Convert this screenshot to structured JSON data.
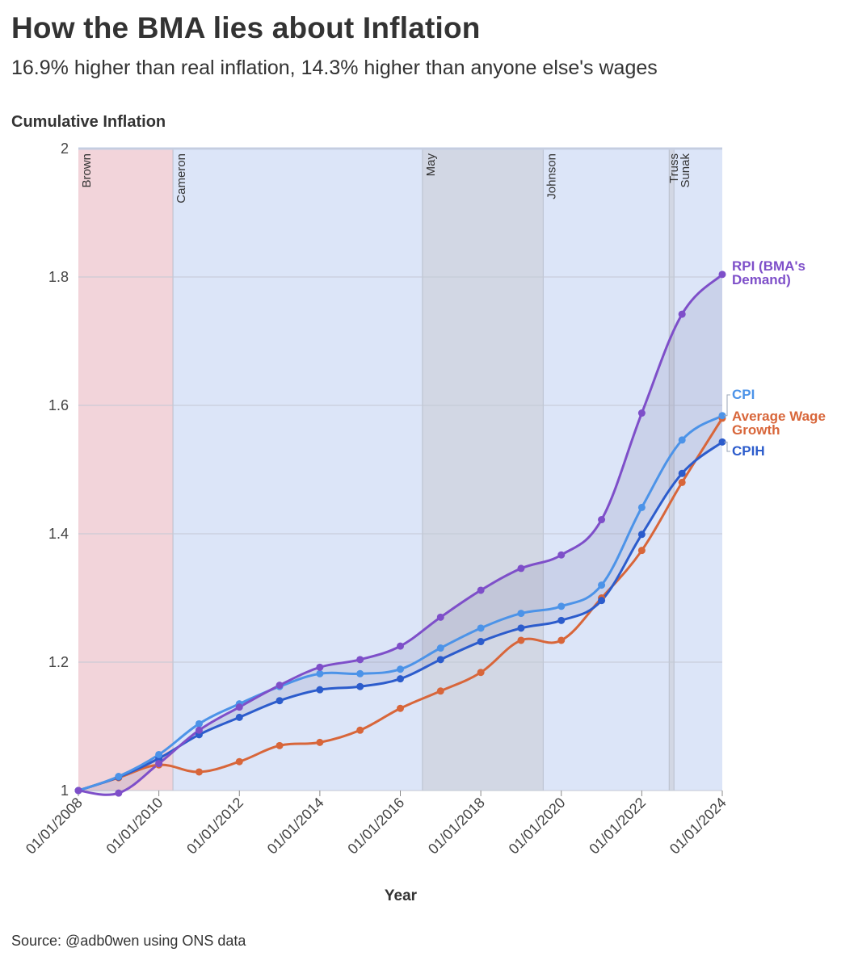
{
  "header": {
    "title": "How the BMA lies about Inflation",
    "subtitle": "16.9% higher than real inflation, 14.3% higher than anyone else's wages"
  },
  "footer": {
    "source": "Source: @adb0wen using ONS data"
  },
  "chart_data": {
    "type": "line",
    "ylabel": "Cumulative Inflation",
    "xlabel": "Year",
    "ylim": [
      1,
      2
    ],
    "yticks": [
      1,
      1.2,
      1.4,
      1.6,
      1.8,
      2
    ],
    "ytick_labels": [
      "1",
      "1.2",
      "1.4",
      "1.6",
      "1.8",
      "2"
    ],
    "xlim": [
      2008,
      2024
    ],
    "xticks": [
      2008,
      2010,
      2012,
      2014,
      2016,
      2018,
      2020,
      2022,
      2024
    ],
    "xtick_labels": [
      "01/01/2008",
      "01/01/2010",
      "01/01/2012",
      "01/01/2014",
      "01/01/2016",
      "01/01/2018",
      "01/01/2020",
      "01/01/2022",
      "01/01/2024"
    ],
    "x": [
      2008,
      2009,
      2010,
      2011,
      2012,
      2013,
      2014,
      2015,
      2016,
      2017,
      2018,
      2019,
      2020,
      2021,
      2022,
      2023,
      2024
    ],
    "series": [
      {
        "key": "rpi",
        "name": "RPI (BMA's Demand)",
        "label_lines": [
          "RPI (BMA's",
          "Demand)"
        ],
        "color": "#7e4fc9",
        "values": [
          1.0,
          0.996,
          1.042,
          1.094,
          1.13,
          1.164,
          1.192,
          1.204,
          1.225,
          1.27,
          1.312,
          1.346,
          1.367,
          1.422,
          1.588,
          1.742,
          1.804
        ]
      },
      {
        "key": "cpi",
        "name": "CPI",
        "label_lines": [
          "CPI"
        ],
        "color": "#4c93e8",
        "values": [
          1.0,
          1.022,
          1.056,
          1.104,
          1.135,
          1.162,
          1.182,
          1.182,
          1.189,
          1.222,
          1.253,
          1.276,
          1.287,
          1.32,
          1.441,
          1.546,
          1.584
        ]
      },
      {
        "key": "wage",
        "name": "Average Wage Growth",
        "label_lines": [
          "Average Wage",
          "Growth"
        ],
        "color": "#d8663a",
        "values": [
          1.0,
          1.02,
          1.04,
          1.029,
          1.045,
          1.07,
          1.075,
          1.094,
          1.128,
          1.155,
          1.184,
          1.234,
          1.234,
          1.3,
          1.374,
          1.48,
          1.58
        ]
      },
      {
        "key": "cpih",
        "name": "CPIH",
        "label_lines": [
          "CPIH"
        ],
        "color": "#2c5ccc",
        "values": [
          1.0,
          1.021,
          1.05,
          1.087,
          1.114,
          1.14,
          1.157,
          1.162,
          1.174,
          1.204,
          1.232,
          1.253,
          1.265,
          1.296,
          1.399,
          1.494,
          1.543
        ]
      }
    ],
    "pm_periods": [
      {
        "name": "Brown",
        "start": 2008,
        "end": 2010.35,
        "color": "#f2d4da"
      },
      {
        "name": "Cameron",
        "start": 2010.35,
        "end": 2016.55,
        "color": "#dce5f8"
      },
      {
        "name": "May",
        "start": 2016.55,
        "end": 2019.55,
        "color": "#d2d7e4"
      },
      {
        "name": "Johnson",
        "start": 2019.55,
        "end": 2022.68,
        "color": "#dce5f8"
      },
      {
        "name": "Truss",
        "start": 2022.68,
        "end": 2022.8,
        "color": "#d2d7e4"
      },
      {
        "name": "Sunak",
        "start": 2022.8,
        "end": 2024.05,
        "color": "#dce5f8"
      }
    ]
  }
}
